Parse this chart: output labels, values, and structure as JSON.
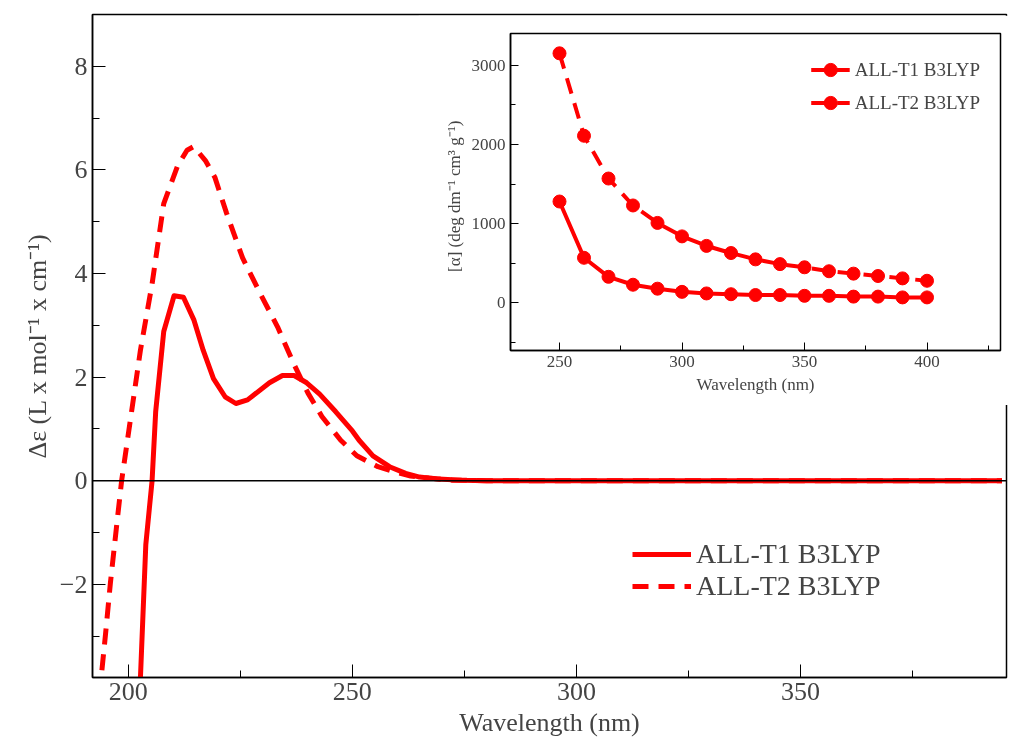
{
  "chart_data": [
    {
      "type": "line",
      "xlabel": "Wavelength (nm)",
      "ylabel": "Δε (L x mol⁻¹ x cm⁻¹)",
      "xlim": [
        192,
        396
      ],
      "ylim": [
        -3.8,
        9
      ],
      "xticks": [
        200,
        250,
        300,
        350
      ],
      "yticks": [
        -2,
        0,
        2,
        4,
        6,
        8
      ],
      "grid": false,
      "legend": "bottom right",
      "marker": "none",
      "ref_lines": [
        {
          "axis": "y",
          "value": 0,
          "color": "#000000"
        }
      ],
      "series": [
        {
          "name": "ALL-T1 B3LYP",
          "color": "#ff0000",
          "line_style": "solid",
          "x": [
            202.7,
            203.9,
            205.3,
            206.1,
            207.9,
            210.2,
            212.3,
            214.6,
            216.7,
            219,
            221.6,
            224,
            226.6,
            231.5,
            234.4,
            237,
            239.8,
            242.7,
            246.3,
            250,
            251.5,
            254.6,
            258.3,
            261.9,
            265,
            269.2,
            274.4,
            280,
            300,
            350,
            395
          ],
          "values": [
            -3.8,
            -1.23,
            0,
            1.33,
            2.88,
            3.57,
            3.54,
            3.11,
            2.52,
            1.97,
            1.62,
            1.49,
            1.56,
            1.89,
            2.03,
            2.03,
            1.89,
            1.67,
            1.33,
            0.96,
            0.78,
            0.48,
            0.27,
            0.14,
            0.07,
            0.03,
            0.01,
            0,
            0,
            0,
            0
          ]
        },
        {
          "name": "ALL-T2 B3LYP",
          "color": "#ff0000",
          "line_style": "dashed",
          "x": [
            194.1,
            194.9,
            196,
            197.5,
            198.5,
            200.1,
            202.7,
            205.3,
            207.9,
            211,
            213.1,
            214.6,
            217.2,
            219.3,
            221.9,
            225.5,
            229.7,
            233.3,
            237,
            240.1,
            243.2,
            247.4,
            251,
            255.7,
            259.8,
            263,
            267.1,
            272.3,
            280,
            300,
            350,
            395
          ],
          "values": [
            -3.66,
            -2.97,
            -1.97,
            -0.78,
            0,
            0.96,
            2.52,
            3.8,
            5.35,
            6.08,
            6.38,
            6.45,
            6.18,
            5.86,
            5.17,
            4.3,
            3.57,
            2.97,
            2.24,
            1.69,
            1.24,
            0.78,
            0.48,
            0.27,
            0.16,
            0.09,
            0.05,
            0.01,
            0,
            0,
            0,
            0
          ]
        }
      ]
    },
    {
      "type": "line",
      "xlabel": "Wavelength (nm)",
      "ylabel": "[α]  (deg  dm⁻¹ cm³ g⁻¹)",
      "xlim": [
        230,
        430
      ],
      "ylim": [
        -600,
        3400
      ],
      "xticks": [
        250,
        300,
        350,
        400
      ],
      "yticks": [
        0,
        1000,
        2000,
        3000
      ],
      "grid": false,
      "legend": "top right",
      "marker": "circle",
      "x": [
        250,
        260,
        270,
        280,
        290,
        300,
        310,
        320,
        330,
        340,
        350,
        360,
        370,
        380,
        390,
        400
      ],
      "series": [
        {
          "name": "ALL-T1 B3LYP",
          "color": "#ff0000",
          "line_style": "solid",
          "values": [
            1280,
            570,
            330,
            230,
            180,
            140,
            120,
            110,
            100,
            100,
            90,
            90,
            80,
            80,
            70,
            70
          ]
        },
        {
          "name": "ALL-T2 B3LYP",
          "color": "#ff0000",
          "line_style": "dashed",
          "values": [
            3150,
            2110,
            1570,
            1230,
            1010,
            840,
            720,
            630,
            550,
            490,
            450,
            400,
            370,
            340,
            310,
            280
          ]
        }
      ]
    }
  ]
}
